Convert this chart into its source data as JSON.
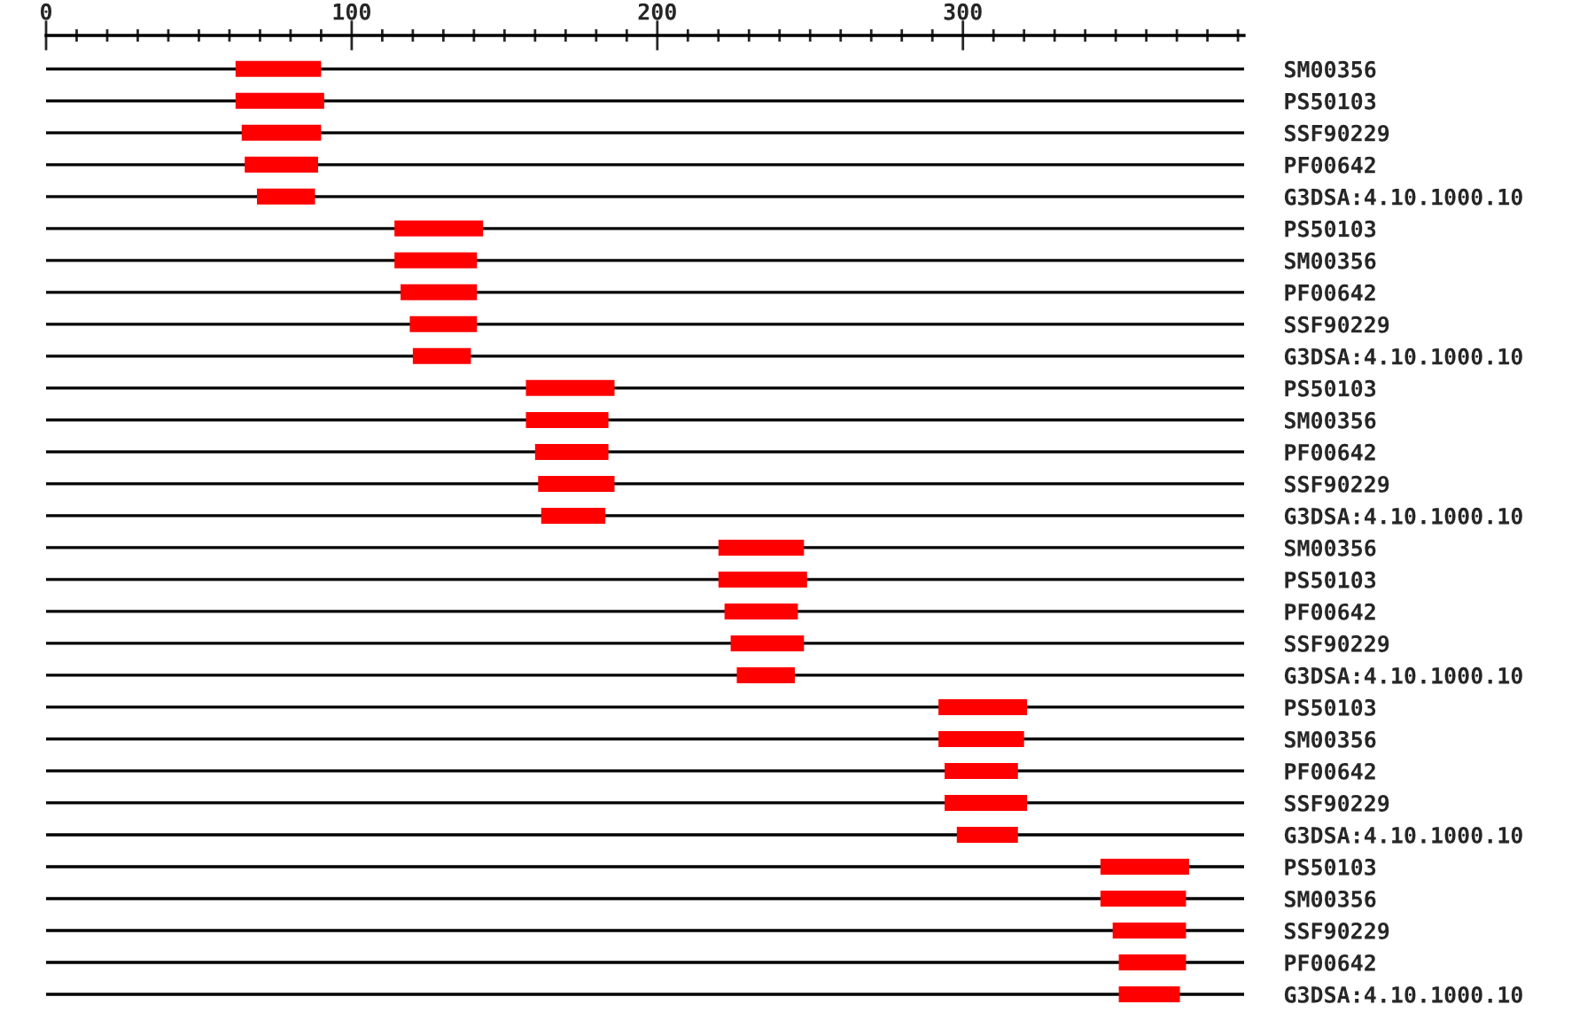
{
  "chart_data": {
    "type": "bar",
    "orientation": "horizontal",
    "grid": "y",
    "categories": [
      "SM00356",
      "PS50103",
      "SSF90229",
      "PF00642",
      "G3DSA:4.10.1000.10",
      "PS50103",
      "SM00356",
      "PF00642",
      "SSF90229",
      "G3DSA:4.10.1000.10",
      "PS50103",
      "SM00356",
      "PF00642",
      "SSF90229",
      "G3DSA:4.10.1000.10",
      "SM00356",
      "PS50103",
      "PF00642",
      "SSF90229",
      "G3DSA:4.10.1000.10",
      "PS50103",
      "SM00356",
      "PF00642",
      "SSF90229",
      "G3DSA:4.10.1000.10",
      "PS50103",
      "SM00356",
      "SSF90229",
      "PF00642",
      "G3DSA:4.10.1000.10"
    ],
    "base": [
      62,
      62,
      64,
      65,
      69,
      114,
      114,
      116,
      119,
      120,
      157,
      157,
      160,
      161,
      162,
      220,
      220,
      222,
      224,
      226,
      292,
      292,
      294,
      294,
      298,
      345,
      345,
      349,
      351,
      351
    ],
    "values": [
      28,
      29,
      26,
      24,
      19,
      29,
      27,
      25,
      22,
      19,
      29,
      27,
      24,
      25,
      21,
      28,
      29,
      24,
      24,
      19,
      29,
      28,
      24,
      27,
      20,
      29,
      28,
      24,
      22,
      20
    ],
    "color": "#ff0000",
    "xlim": [
      0,
      392
    ],
    "xticks": [
      0,
      {
        "value": 10,
        "label": null
      },
      {
        "value": 20,
        "label": null
      },
      {
        "value": 30,
        "label": null
      },
      {
        "value": 40,
        "label": null
      },
      {
        "value": 50,
        "label": null
      },
      {
        "value": 60,
        "label": null
      },
      {
        "value": 70,
        "label": null
      },
      {
        "value": 80,
        "label": null
      },
      {
        "value": 90,
        "label": null
      },
      100,
      {
        "value": 110,
        "label": null
      },
      {
        "value": 120,
        "label": null
      },
      {
        "value": 130,
        "label": null
      },
      {
        "value": 140,
        "label": null
      },
      {
        "value": 150,
        "label": null
      },
      {
        "value": 160,
        "label": null
      },
      {
        "value": 170,
        "label": null
      },
      {
        "value": 180,
        "label": null
      },
      {
        "value": 190,
        "label": null
      },
      200,
      {
        "value": 210,
        "label": null
      },
      {
        "value": 220,
        "label": null
      },
      {
        "value": 230,
        "label": null
      },
      {
        "value": 240,
        "label": null
      },
      {
        "value": 250,
        "label": null
      },
      {
        "value": 260,
        "label": null
      },
      {
        "value": 270,
        "label": null
      },
      {
        "value": 280,
        "label": null
      },
      {
        "value": 290,
        "label": null
      },
      300,
      {
        "value": 310,
        "label": null
      },
      {
        "value": 320,
        "label": null
      },
      {
        "value": 330,
        "label": null
      },
      {
        "value": 340,
        "label": null
      },
      {
        "value": 350,
        "label": null
      },
      {
        "value": 360,
        "label": null
      },
      {
        "value": 370,
        "label": null
      },
      {
        "value": 380,
        "label": null
      },
      {
        "value": 390,
        "label": null
      }
    ]
  }
}
